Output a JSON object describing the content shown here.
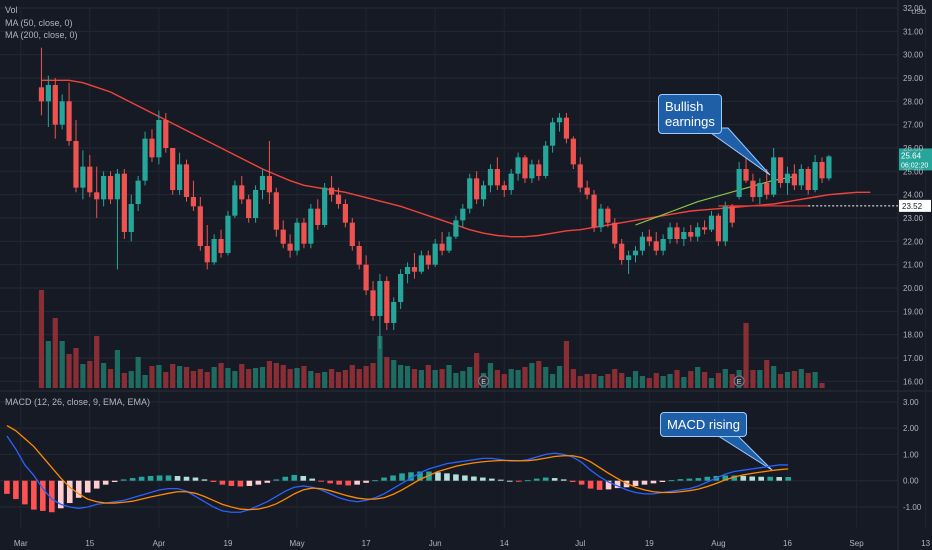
{
  "legend": {
    "vol": "Vol",
    "ma50": "MA (50, close, 0)",
    "ma200": "MA (200, close, 0)",
    "macd": "MACD (12, 26, close, 9, EMA, EMA)"
  },
  "annotations": {
    "bullish_line1": "Bullish",
    "bullish_line2": "earnings",
    "macd_rising": "MACD rising",
    "earnings_marker": "E"
  },
  "price_axis": {
    "unit": "USD",
    "ticks": [
      "32.00",
      "31.00",
      "30.00",
      "29.00",
      "28.00",
      "27.00",
      "26.00",
      "25.00",
      "24.00",
      "23.00",
      "22.00",
      "21.00",
      "20.00",
      "19.00",
      "18.00",
      "17.00",
      "16.00"
    ],
    "last_price": "25.64",
    "countdown": "06:02:20",
    "level_label": "23.52"
  },
  "macd_axis": {
    "ticks": [
      "3.00",
      "2.00",
      "1.00",
      "0.00",
      "-1.00"
    ]
  },
  "time_axis": {
    "ticks": [
      "Mar",
      "15",
      "Apr",
      "19",
      "May",
      "17",
      "Jun",
      "14",
      "Jul",
      "19",
      "Aug",
      "16",
      "Sep",
      "13"
    ]
  },
  "colors": {
    "background": "#161a25",
    "up": "#26a69a",
    "down": "#ef5350",
    "ma50": "#8bc34a",
    "ma200": "#f0433a",
    "macd_line": "#2962ff",
    "signal_line": "#ff8a00",
    "hist_up_strong": "#26a69a",
    "hist_up_weak": "#b2dfdb",
    "hist_down_strong": "#ff5252",
    "hist_down_weak": "#ffcdd2",
    "callout": "#1e5fa8",
    "last_price_tag": "#26a69a"
  },
  "chart_data": [
    {
      "type": "candlestick",
      "x_labels": [
        "Mar",
        "15",
        "Apr",
        "19",
        "May",
        "17",
        "Jun",
        "14",
        "Jul",
        "19",
        "Aug",
        "16",
        "Sep",
        "13"
      ],
      "ylim": [
        15.8,
        32.0
      ],
      "y_unit": "USD",
      "x_range": [
        -6,
        124
      ],
      "ohlc": [
        [
          28.6,
          30.3,
          27.4,
          28.0
        ],
        [
          28.0,
          29.1,
          26.9,
          28.7
        ],
        [
          28.7,
          29.0,
          26.4,
          27.0
        ],
        [
          27.0,
          28.3,
          26.8,
          28.0
        ],
        [
          28.0,
          28.8,
          26.1,
          26.3
        ],
        [
          26.3,
          27.2,
          24.1,
          24.3
        ],
        [
          24.3,
          25.9,
          23.8,
          25.2
        ],
        [
          25.2,
          25.7,
          23.9,
          24.1
        ],
        [
          24.1,
          25.2,
          23.0,
          23.8
        ],
        [
          23.8,
          25.0,
          23.5,
          24.8
        ],
        [
          24.8,
          25.0,
          23.6,
          23.8
        ],
        [
          23.8,
          25.1,
          20.8,
          24.9
        ],
        [
          24.9,
          25.1,
          22.1,
          22.4
        ],
        [
          22.4,
          24.0,
          22.0,
          23.6
        ],
        [
          23.6,
          24.8,
          23.3,
          24.6
        ],
        [
          24.6,
          26.7,
          24.4,
          26.4
        ],
        [
          26.4,
          26.8,
          25.4,
          25.6
        ],
        [
          25.6,
          27.6,
          25.3,
          27.2
        ],
        [
          27.2,
          27.5,
          25.8,
          26.0
        ],
        [
          26.0,
          26.0,
          24.0,
          24.2
        ],
        [
          24.2,
          25.8,
          24.0,
          25.3
        ],
        [
          25.3,
          25.5,
          23.7,
          23.9
        ],
        [
          23.9,
          24.6,
          23.3,
          23.5
        ],
        [
          23.5,
          23.9,
          21.6,
          21.8
        ],
        [
          21.8,
          22.7,
          20.8,
          21.1
        ],
        [
          21.1,
          22.3,
          21.0,
          22.1
        ],
        [
          22.1,
          22.5,
          21.3,
          21.5
        ],
        [
          21.5,
          23.3,
          21.4,
          23.1
        ],
        [
          23.1,
          24.6,
          23.0,
          24.4
        ],
        [
          24.4,
          24.8,
          23.6,
          23.8
        ],
        [
          23.8,
          24.0,
          22.8,
          23.0
        ],
        [
          23.0,
          24.4,
          22.8,
          24.2
        ],
        [
          24.2,
          25.1,
          23.8,
          24.8
        ],
        [
          24.8,
          26.3,
          23.6,
          24.1
        ],
        [
          24.1,
          24.3,
          22.2,
          22.5
        ],
        [
          22.5,
          22.9,
          21.7,
          21.9
        ],
        [
          21.9,
          22.3,
          21.3,
          21.6
        ],
        [
          21.6,
          23.0,
          21.4,
          22.8
        ],
        [
          22.8,
          23.0,
          21.7,
          21.9
        ],
        [
          21.9,
          23.6,
          21.7,
          23.4
        ],
        [
          23.4,
          23.8,
          22.5,
          22.7
        ],
        [
          22.7,
          24.5,
          22.6,
          24.3
        ],
        [
          24.3,
          24.8,
          23.7,
          24.0
        ],
        [
          24.0,
          24.3,
          23.4,
          23.6
        ],
        [
          23.6,
          23.8,
          22.6,
          22.8
        ],
        [
          22.8,
          23.0,
          21.6,
          21.8
        ],
        [
          21.8,
          22.0,
          20.8,
          21.0
        ],
        [
          21.0,
          21.4,
          19.7,
          19.9
        ],
        [
          19.9,
          20.3,
          18.6,
          18.8
        ],
        [
          18.8,
          20.6,
          17.4,
          20.3
        ],
        [
          20.3,
          20.5,
          18.2,
          18.5
        ],
        [
          18.5,
          19.6,
          18.2,
          19.4
        ],
        [
          19.4,
          20.8,
          19.1,
          20.6
        ],
        [
          20.6,
          21.1,
          20.2,
          20.9
        ],
        [
          20.9,
          21.5,
          20.4,
          20.7
        ],
        [
          20.7,
          21.6,
          20.6,
          21.4
        ],
        [
          21.4,
          21.6,
          20.8,
          21.0
        ],
        [
          21.0,
          22.1,
          20.9,
          21.9
        ],
        [
          21.9,
          22.4,
          21.4,
          21.6
        ],
        [
          21.6,
          22.4,
          21.5,
          22.2
        ],
        [
          22.2,
          23.1,
          22.1,
          22.9
        ],
        [
          22.9,
          23.6,
          22.6,
          23.4
        ],
        [
          23.4,
          24.9,
          23.2,
          24.7
        ],
        [
          24.7,
          25.0,
          23.6,
          23.8
        ],
        [
          23.8,
          24.6,
          23.5,
          24.4
        ],
        [
          24.4,
          25.3,
          24.1,
          25.1
        ],
        [
          25.1,
          25.6,
          24.2,
          24.4
        ],
        [
          24.4,
          24.6,
          23.9,
          24.2
        ],
        [
          24.2,
          25.1,
          24.0,
          24.9
        ],
        [
          24.9,
          25.8,
          24.6,
          25.6
        ],
        [
          25.6,
          25.7,
          24.5,
          24.7
        ],
        [
          24.7,
          25.5,
          24.5,
          25.3
        ],
        [
          25.3,
          25.5,
          24.6,
          24.8
        ],
        [
          24.8,
          26.3,
          24.7,
          26.1
        ],
        [
          26.1,
          27.3,
          25.8,
          27.1
        ],
        [
          27.1,
          27.5,
          26.7,
          27.3
        ],
        [
          27.3,
          27.5,
          26.2,
          26.4
        ],
        [
          26.4,
          26.5,
          25.1,
          25.3
        ],
        [
          25.3,
          25.6,
          24.1,
          24.3
        ],
        [
          24.3,
          24.6,
          23.8,
          24.0
        ],
        [
          24.0,
          24.2,
          22.4,
          22.6
        ],
        [
          22.6,
          23.6,
          22.4,
          23.4
        ],
        [
          23.4,
          23.5,
          22.6,
          22.8
        ],
        [
          22.8,
          23.0,
          21.7,
          21.9
        ],
        [
          21.9,
          22.1,
          21.0,
          21.2
        ],
        [
          21.2,
          21.6,
          20.6,
          21.4
        ],
        [
          21.4,
          21.8,
          21.1,
          21.6
        ],
        [
          21.6,
          22.4,
          21.4,
          22.2
        ],
        [
          22.2,
          22.5,
          21.8,
          22.0
        ],
        [
          22.0,
          22.4,
          21.4,
          21.6
        ],
        [
          21.6,
          22.3,
          21.4,
          22.1
        ],
        [
          22.1,
          22.8,
          21.9,
          22.6
        ],
        [
          22.6,
          22.8,
          21.9,
          22.1
        ],
        [
          22.1,
          22.6,
          21.8,
          22.4
        ],
        [
          22.4,
          22.7,
          22.0,
          22.2
        ],
        [
          22.2,
          22.8,
          22.0,
          22.6
        ],
        [
          22.6,
          22.9,
          22.3,
          22.5
        ],
        [
          22.5,
          23.3,
          22.4,
          23.1
        ],
        [
          23.1,
          23.2,
          21.8,
          22.0
        ],
        [
          22.0,
          23.7,
          21.8,
          23.5
        ],
        [
          23.5,
          23.6,
          22.6,
          22.8
        ],
        [
          23.9,
          25.4,
          23.8,
          25.1
        ],
        [
          25.1,
          25.9,
          24.5,
          24.6
        ],
        [
          24.6,
          24.9,
          23.7,
          23.9
        ],
        [
          23.9,
          24.7,
          23.6,
          24.5
        ],
        [
          24.5,
          25.1,
          23.8,
          24.0
        ],
        [
          24.0,
          26.0,
          23.9,
          25.6
        ],
        [
          25.6,
          25.6,
          24.3,
          24.5
        ],
        [
          24.5,
          25.2,
          24.0,
          24.9
        ],
        [
          24.9,
          25.3,
          24.2,
          24.4
        ],
        [
          24.4,
          25.3,
          24.2,
          25.1
        ],
        [
          25.1,
          25.2,
          24.0,
          24.2
        ],
        [
          24.2,
          25.7,
          24.1,
          25.4
        ],
        [
          25.4,
          25.6,
          24.5,
          24.7
        ],
        [
          24.7,
          25.7,
          24.6,
          25.64
        ]
      ],
      "volume": [
        98,
        47,
        70,
        47,
        34,
        40,
        24,
        27,
        52,
        25,
        19,
        38,
        15,
        17,
        31,
        13,
        22,
        23,
        16,
        24,
        22,
        21,
        17,
        19,
        16,
        21,
        25,
        20,
        17,
        24,
        19,
        20,
        21,
        27,
        25,
        23,
        19,
        20,
        22,
        17,
        15,
        16,
        19,
        16,
        18,
        23,
        19,
        22,
        25,
        52,
        31,
        28,
        23,
        22,
        19,
        18,
        23,
        18,
        19,
        23,
        15,
        17,
        21,
        35,
        15,
        25,
        18,
        14,
        19,
        18,
        21,
        25,
        27,
        21,
        14,
        22,
        47,
        19,
        12,
        14,
        14,
        12,
        14,
        19,
        15,
        11,
        17,
        12,
        10,
        15,
        12,
        14,
        18,
        11,
        17,
        21,
        16,
        10,
        15,
        19,
        14,
        18,
        65,
        18,
        18,
        28,
        22,
        14,
        16,
        17,
        19,
        15,
        16,
        5
      ],
      "ma50": [
        28.9,
        28.9,
        28.9,
        28.8,
        28.6,
        28.4,
        28.1,
        27.8,
        27.5,
        27.2,
        26.9,
        26.6,
        26.3,
        26.0,
        25.7,
        25.4,
        25.1,
        24.85,
        24.6,
        24.4,
        24.3,
        24.2,
        24.1,
        23.95,
        23.8,
        23.65,
        23.5,
        23.3,
        23.1,
        22.9,
        22.7,
        22.5,
        22.35,
        22.25,
        22.2,
        22.2,
        22.25,
        22.35,
        22.45,
        22.5,
        22.6,
        22.7,
        22.8,
        22.9,
        23.0,
        23.1,
        23.2,
        23.3,
        23.35,
        23.4,
        23.45,
        23.5,
        23.55,
        23.6,
        23.7,
        23.8,
        23.9,
        24.0,
        24.05,
        24.1,
        24.1
      ],
      "ma_short": [
        22.7,
        22.9,
        23.1,
        23.3,
        23.5,
        23.7,
        23.85,
        24.0,
        24.15,
        24.3,
        24.45,
        24.6,
        24.7,
        24.8
      ],
      "level": 23.52,
      "earnings_bars": [
        64,
        101
      ],
      "title": "",
      "ylabel": "USD"
    },
    {
      "type": "macd",
      "ylim": [
        -1.8,
        3.3
      ],
      "ticks": [
        3.0,
        2.0,
        1.0,
        0.0,
        -1.0
      ],
      "macd": [
        1.7,
        1.2,
        0.6,
        0.2,
        -0.3,
        -0.7,
        -0.9,
        -1.0,
        -1.05,
        -1.0,
        -0.9,
        -0.85,
        -0.8,
        -0.75,
        -0.65,
        -0.55,
        -0.45,
        -0.35,
        -0.3,
        -0.3,
        -0.4,
        -0.6,
        -0.8,
        -1.0,
        -1.15,
        -1.2,
        -1.2,
        -1.1,
        -0.95,
        -0.8,
        -0.6,
        -0.4,
        -0.25,
        -0.2,
        -0.25,
        -0.35,
        -0.5,
        -0.65,
        -0.75,
        -0.8,
        -0.75,
        -0.65,
        -0.5,
        -0.3,
        -0.1,
        0.1,
        0.3,
        0.45,
        0.55,
        0.65,
        0.7,
        0.75,
        0.8,
        0.85,
        0.85,
        0.8,
        0.75,
        0.75,
        0.8,
        0.9,
        1.0,
        1.05,
        1.0,
        0.9,
        0.7,
        0.4,
        0.15,
        -0.05,
        -0.2,
        -0.35,
        -0.45,
        -0.5,
        -0.5,
        -0.45,
        -0.4,
        -0.35,
        -0.3,
        -0.2,
        -0.05,
        0.1,
        0.25,
        0.35,
        0.4,
        0.45,
        0.5,
        0.55,
        0.6,
        0.6
      ],
      "signal": [
        2.1,
        1.9,
        1.6,
        1.3,
        0.9,
        0.5,
        0.1,
        -0.25,
        -0.5,
        -0.7,
        -0.8,
        -0.85,
        -0.85,
        -0.82,
        -0.78,
        -0.7,
        -0.62,
        -0.55,
        -0.48,
        -0.42,
        -0.42,
        -0.48,
        -0.6,
        -0.75,
        -0.9,
        -1.0,
        -1.08,
        -1.1,
        -1.08,
        -1.0,
        -0.88,
        -0.7,
        -0.5,
        -0.35,
        -0.28,
        -0.3,
        -0.38,
        -0.48,
        -0.58,
        -0.66,
        -0.7,
        -0.7,
        -0.65,
        -0.52,
        -0.35,
        -0.15,
        0.05,
        0.2,
        0.35,
        0.45,
        0.55,
        0.62,
        0.68,
        0.72,
        0.75,
        0.77,
        0.77,
        0.76,
        0.76,
        0.8,
        0.86,
        0.92,
        0.95,
        0.95,
        0.88,
        0.72,
        0.5,
        0.28,
        0.08,
        -0.1,
        -0.25,
        -0.35,
        -0.42,
        -0.45,
        -0.45,
        -0.42,
        -0.38,
        -0.32,
        -0.22,
        -0.1,
        0.03,
        0.14,
        0.22,
        0.28,
        0.33,
        0.38,
        0.42,
        0.45
      ],
      "histogram": [
        -0.5,
        -0.7,
        -0.9,
        -1.1,
        -1.15,
        -1.2,
        -1.05,
        -0.85,
        -0.65,
        -0.45,
        -0.3,
        -0.15,
        -0.05,
        0.05,
        0.1,
        0.15,
        0.18,
        0.2,
        0.2,
        0.18,
        0.15,
        0.12,
        0.05,
        -0.05,
        -0.15,
        -0.2,
        -0.22,
        -0.2,
        -0.15,
        -0.08,
        0.05,
        0.15,
        0.22,
        0.18,
        0.08,
        -0.02,
        -0.1,
        -0.15,
        -0.18,
        -0.15,
        -0.08,
        0.02,
        0.12,
        0.2,
        0.28,
        0.32,
        0.35,
        0.35,
        0.32,
        0.28,
        0.24,
        0.2,
        0.16,
        0.12,
        0.08,
        0.04,
        0.0,
        -0.02,
        0.02,
        0.08,
        0.12,
        0.1,
        0.05,
        -0.05,
        -0.15,
        -0.3,
        -0.35,
        -0.33,
        -0.28,
        -0.25,
        -0.2,
        -0.15,
        -0.1,
        -0.05,
        0.02,
        0.06,
        0.08,
        0.1,
        0.15,
        0.18,
        0.2,
        0.2,
        0.18,
        0.16,
        0.15,
        0.15,
        0.14,
        0.14
      ],
      "title": "MACD (12, 26, close, 9, EMA, EMA)"
    }
  ]
}
